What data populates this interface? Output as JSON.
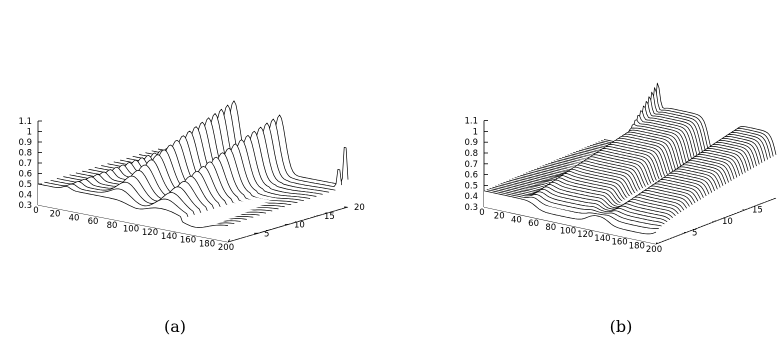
{
  "chart_data": [
    {
      "type": "surface",
      "panel_label": "(a)",
      "x_ticks": [
        "0",
        "20",
        "40",
        "60",
        "80",
        "100",
        "120",
        "140",
        "160",
        "180",
        "200"
      ],
      "y_ticks": [
        "5",
        "10",
        "15",
        "20"
      ],
      "z_ticks": [
        "0.3",
        "0.4",
        "0.5",
        "0.6",
        "0.7",
        "0.8",
        "0.9",
        "1",
        "1.1"
      ],
      "xlim": [
        0,
        200
      ],
      "ylim": [
        0,
        20
      ],
      "zlim": [
        0.3,
        1.1
      ],
      "n_slices": 20,
      "baseline": 0.5,
      "series_by_slice": [
        {
          "y": 0,
          "peaks": [
            [
              30,
              0.53,
              5
            ],
            [
              100,
              0.5,
              10
            ],
            [
              170,
              0.45,
              10
            ]
          ]
        },
        {
          "y": 20,
          "peaks": [
            [
              20,
              0.58,
              4
            ],
            [
              80,
              1.1,
              6
            ],
            [
              128,
              1.03,
              6
            ],
            [
              197,
              0.95,
              2
            ]
          ]
        }
      ],
      "grid": false,
      "legend": "none"
    },
    {
      "type": "surface",
      "panel_label": "(b)",
      "x_ticks": [
        "0",
        "20",
        "40",
        "60",
        "80",
        "100",
        "120",
        "140",
        "160",
        "180",
        "200"
      ],
      "y_ticks": [
        "5",
        "10",
        "15"
      ],
      "z_ticks": [
        "0.3",
        "0.4",
        "0.5",
        "0.6",
        "0.7",
        "0.8",
        "0.9",
        "1",
        "1.1"
      ],
      "xlim": [
        0,
        200
      ],
      "ylim": [
        0,
        20
      ],
      "zlim": [
        0.3,
        1.1
      ],
      "n_slices": 44,
      "baseline": 0.5,
      "series_by_slice": [
        {
          "y": 0,
          "plateaus": [
            [
              55,
              120,
              0.45
            ],
            [
              140,
              200,
              0.42
            ]
          ]
        },
        {
          "y": 20,
          "plateaus": [
            [
              65,
              125,
              0.92
            ],
            [
              150,
              200,
              0.9
            ]
          ],
          "spike": [
            62,
            1.25,
            3
          ]
        }
      ],
      "grid": false,
      "legend": "none"
    }
  ]
}
